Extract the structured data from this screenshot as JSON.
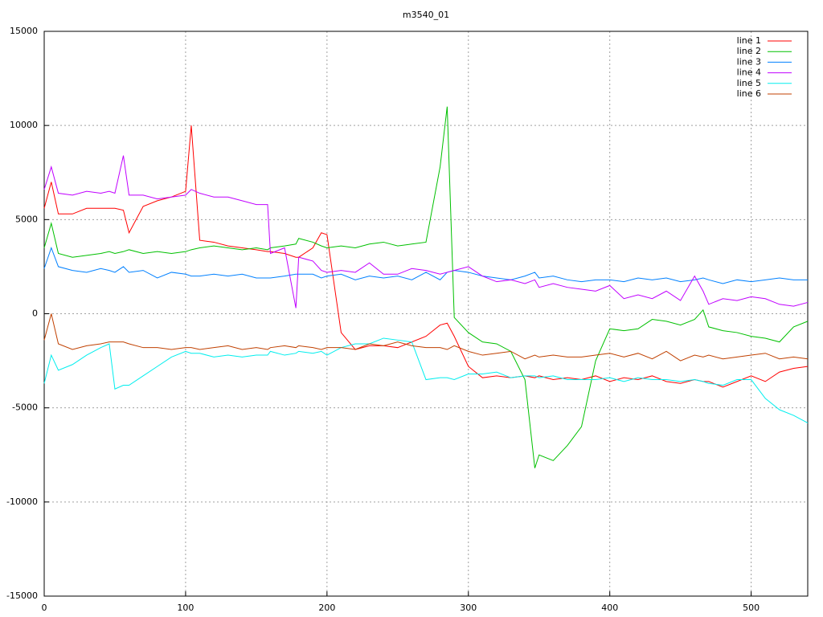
{
  "chart_data": {
    "type": "line",
    "title": "m3540_01",
    "x": [
      0,
      5,
      10,
      20,
      30,
      40,
      46,
      50,
      56,
      60,
      70,
      80,
      90,
      100,
      104,
      110,
      120,
      130,
      140,
      150,
      158,
      160,
      170,
      178,
      180,
      190,
      196,
      200,
      210,
      220,
      230,
      240,
      250,
      260,
      270,
      280,
      285,
      290,
      300,
      310,
      320,
      330,
      340,
      347,
      350,
      360,
      370,
      380,
      390,
      400,
      410,
      420,
      430,
      440,
      450,
      460,
      466,
      470,
      480,
      490,
      500,
      510,
      520,
      530,
      540
    ],
    "xlim": [
      0,
      540
    ],
    "xticks": [
      0,
      100,
      200,
      300,
      400,
      500
    ],
    "ylim": [
      -15000,
      15000
    ],
    "yticks": [
      -15000,
      -10000,
      -5000,
      0,
      5000,
      10000,
      15000
    ],
    "grid": true,
    "legend": "top-right",
    "series": [
      {
        "name": "line 1",
        "color": "#ff0000",
        "values": [
          5600,
          7000,
          5300,
          5300,
          5600,
          5600,
          5600,
          5600,
          5500,
          4300,
          5700,
          6000,
          6200,
          6500,
          10000,
          3900,
          3800,
          3600,
          3500,
          3400,
          3300,
          3300,
          3200,
          3000,
          3000,
          3500,
          4300,
          4200,
          -1000,
          -1900,
          -1700,
          -1700,
          -1800,
          -1500,
          -1200,
          -600,
          -500,
          -1200,
          -2800,
          -3400,
          -3300,
          -3400,
          -3300,
          -3400,
          -3300,
          -3500,
          -3400,
          -3500,
          -3300,
          -3600,
          -3400,
          -3500,
          -3300,
          -3600,
          -3700,
          -3500,
          -3600,
          -3600,
          -3900,
          -3600,
          -3300,
          -3600,
          -3100,
          -2900,
          -2800
        ]
      },
      {
        "name": "line 2",
        "color": "#00c000",
        "values": [
          3500,
          4800,
          3200,
          3000,
          3100,
          3200,
          3300,
          3200,
          3300,
          3400,
          3200,
          3300,
          3200,
          3300,
          3400,
          3500,
          3600,
          3500,
          3400,
          3500,
          3400,
          3500,
          3600,
          3700,
          4000,
          3800,
          3600,
          3500,
          3600,
          3500,
          3700,
          3800,
          3600,
          3700,
          3800,
          7800,
          11000,
          -200,
          -1000,
          -1500,
          -1600,
          -2000,
          -3500,
          -8200,
          -7500,
          -7800,
          -7000,
          -6000,
          -2500,
          -800,
          -900,
          -800,
          -300,
          -400,
          -600,
          -300,
          200,
          -700,
          -900,
          -1000,
          -1200,
          -1300,
          -1500,
          -700,
          -400
        ]
      },
      {
        "name": "line 3",
        "color": "#0080ff",
        "values": [
          2400,
          3500,
          2500,
          2300,
          2200,
          2400,
          2300,
          2200,
          2500,
          2200,
          2300,
          1900,
          2200,
          2100,
          2000,
          2000,
          2100,
          2000,
          2100,
          1900,
          1900,
          1900,
          2000,
          2100,
          2100,
          2100,
          1900,
          2000,
          2100,
          1800,
          2000,
          1900,
          2000,
          1800,
          2200,
          1800,
          2200,
          2300,
          2200,
          2000,
          1900,
          1800,
          2000,
          2200,
          1900,
          2000,
          1800,
          1700,
          1800,
          1800,
          1700,
          1900,
          1800,
          1900,
          1700,
          1800,
          1900,
          1800,
          1600,
          1800,
          1700,
          1800,
          1900,
          1800,
          1800
        ]
      },
      {
        "name": "line 4",
        "color": "#c000ff",
        "values": [
          6600,
          7800,
          6400,
          6300,
          6500,
          6400,
          6500,
          6400,
          8400,
          6300,
          6300,
          6100,
          6200,
          6300,
          6600,
          6400,
          6200,
          6200,
          6000,
          5800,
          5800,
          3200,
          3500,
          300,
          3000,
          2800,
          2300,
          2200,
          2300,
          2200,
          2700,
          2100,
          2100,
          2400,
          2300,
          2100,
          2200,
          2300,
          2500,
          2000,
          1700,
          1800,
          1600,
          1800,
          1400,
          1600,
          1400,
          1300,
          1200,
          1500,
          800,
          1000,
          800,
          1200,
          700,
          2000,
          1200,
          500,
          800,
          700,
          900,
          800,
          500,
          400,
          600
        ]
      },
      {
        "name": "line 5",
        "color": "#00eeee",
        "values": [
          -3700,
          -2200,
          -3000,
          -2700,
          -2200,
          -1800,
          -1600,
          -4000,
          -3800,
          -3800,
          -3300,
          -2800,
          -2300,
          -2000,
          -2100,
          -2100,
          -2300,
          -2200,
          -2300,
          -2200,
          -2200,
          -2000,
          -2200,
          -2100,
          -2000,
          -2100,
          -2000,
          -2200,
          -1800,
          -1600,
          -1600,
          -1300,
          -1400,
          -1500,
          -3500,
          -3400,
          -3400,
          -3500,
          -3200,
          -3200,
          -3100,
          -3400,
          -3300,
          -3300,
          -3400,
          -3300,
          -3500,
          -3500,
          -3500,
          -3400,
          -3600,
          -3400,
          -3500,
          -3500,
          -3600,
          -3500,
          -3600,
          -3700,
          -3800,
          -3500,
          -3500,
          -4500,
          -5100,
          -5400,
          -5800
        ]
      },
      {
        "name": "line 6",
        "color": "#c04000",
        "values": [
          -1400,
          0,
          -1600,
          -1900,
          -1700,
          -1600,
          -1500,
          -1500,
          -1500,
          -1600,
          -1800,
          -1800,
          -1900,
          -1800,
          -1800,
          -1900,
          -1800,
          -1700,
          -1900,
          -1800,
          -1900,
          -1800,
          -1700,
          -1800,
          -1700,
          -1800,
          -1900,
          -1800,
          -1800,
          -1900,
          -1600,
          -1700,
          -1500,
          -1700,
          -1800,
          -1800,
          -1900,
          -1700,
          -2000,
          -2200,
          -2100,
          -2000,
          -2400,
          -2200,
          -2300,
          -2200,
          -2300,
          -2300,
          -2200,
          -2100,
          -2300,
          -2100,
          -2400,
          -2000,
          -2500,
          -2200,
          -2300,
          -2200,
          -2400,
          -2300,
          -2200,
          -2100,
          -2400,
          -2300,
          -2400
        ]
      }
    ]
  }
}
